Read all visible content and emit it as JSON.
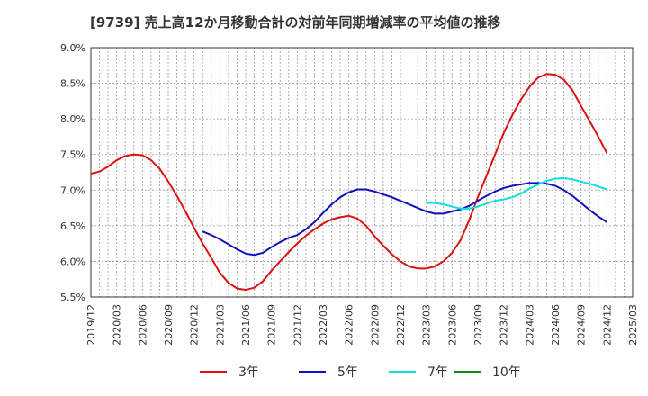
{
  "chart_data": {
    "type": "line",
    "title": "[9739]  売上高12か月移動合計の対前年同期増減率の平均値の推移",
    "x_tick_labels": [
      "2019/12",
      "2020/03",
      "2020/06",
      "2020/09",
      "2020/12",
      "2021/03",
      "2021/06",
      "2021/09",
      "2021/12",
      "2022/03",
      "2022/06",
      "2022/09",
      "2022/12",
      "2023/03",
      "2023/06",
      "2023/09",
      "2023/12",
      "2024/03",
      "2024/06",
      "2024/09",
      "2024/12",
      "2025/03"
    ],
    "y_tick_labels": [
      "5.5%",
      "6.0%",
      "6.5%",
      "7.0%",
      "7.5%",
      "8.0%",
      "8.5%",
      "9.0%"
    ],
    "ylim": [
      5.5,
      9.0
    ],
    "grid": true,
    "legend_position": "bottom",
    "series": [
      {
        "name": "3年",
        "color": "#dd1111",
        "x": [
          "2019/12",
          "2020/01",
          "2020/02",
          "2020/03",
          "2020/04",
          "2020/05",
          "2020/06",
          "2020/07",
          "2020/08",
          "2020/09",
          "2020/10",
          "2020/11",
          "2020/12",
          "2021/01",
          "2021/02",
          "2021/03",
          "2021/04",
          "2021/05",
          "2021/06",
          "2021/07",
          "2021/08",
          "2021/09",
          "2021/10",
          "2021/11",
          "2021/12",
          "2022/01",
          "2022/02",
          "2022/03",
          "2022/04",
          "2022/05",
          "2022/06",
          "2022/07",
          "2022/08",
          "2022/09",
          "2022/10",
          "2022/11",
          "2022/12",
          "2023/01",
          "2023/02",
          "2023/03",
          "2023/04",
          "2023/05",
          "2023/06",
          "2023/07",
          "2023/08",
          "2023/09",
          "2023/10",
          "2023/11",
          "2023/12",
          "2024/01",
          "2024/02",
          "2024/03",
          "2024/04",
          "2024/05",
          "2024/06",
          "2024/07",
          "2024/08",
          "2024/09",
          "2024/10",
          "2024/11",
          "2024/12"
        ],
        "values": [
          7.23,
          7.26,
          7.33,
          7.42,
          7.48,
          7.5,
          7.49,
          7.42,
          7.3,
          7.12,
          6.92,
          6.7,
          6.47,
          6.25,
          6.05,
          5.84,
          5.7,
          5.62,
          5.6,
          5.63,
          5.72,
          5.87,
          6.0,
          6.13,
          6.25,
          6.36,
          6.45,
          6.53,
          6.59,
          6.62,
          6.64,
          6.6,
          6.5,
          6.35,
          6.22,
          6.1,
          6.0,
          5.93,
          5.9,
          5.9,
          5.93,
          6.0,
          6.12,
          6.3,
          6.58,
          6.9,
          7.2,
          7.5,
          7.8,
          8.05,
          8.27,
          8.45,
          8.58,
          8.63,
          8.62,
          8.55,
          8.4,
          8.18,
          7.97,
          7.75,
          7.52
        ]
      },
      {
        "name": "5年",
        "color": "#1111bb",
        "x": [
          "2021/01",
          "2021/02",
          "2021/03",
          "2021/04",
          "2021/05",
          "2021/06",
          "2021/07",
          "2021/08",
          "2021/09",
          "2021/10",
          "2021/11",
          "2021/12",
          "2022/01",
          "2022/02",
          "2022/03",
          "2022/04",
          "2022/05",
          "2022/06",
          "2022/07",
          "2022/08",
          "2022/09",
          "2022/10",
          "2022/11",
          "2022/12",
          "2023/01",
          "2023/02",
          "2023/03",
          "2023/04",
          "2023/05",
          "2023/06",
          "2023/07",
          "2023/08",
          "2023/09",
          "2023/10",
          "2023/11",
          "2023/12",
          "2024/01",
          "2024/02",
          "2024/03",
          "2024/04",
          "2024/05",
          "2024/06",
          "2024/07",
          "2024/08",
          "2024/09",
          "2024/10",
          "2024/11",
          "2024/12"
        ],
        "values": [
          6.42,
          6.37,
          6.31,
          6.24,
          6.17,
          6.11,
          6.09,
          6.12,
          6.2,
          6.27,
          6.33,
          6.37,
          6.45,
          6.55,
          6.68,
          6.8,
          6.9,
          6.97,
          7.01,
          7.01,
          6.98,
          6.94,
          6.9,
          6.85,
          6.8,
          6.75,
          6.7,
          6.67,
          6.67,
          6.7,
          6.73,
          6.78,
          6.85,
          6.92,
          6.98,
          7.03,
          7.06,
          7.08,
          7.1,
          7.1,
          7.09,
          7.06,
          7.0,
          6.92,
          6.82,
          6.72,
          6.63,
          6.55
        ]
      },
      {
        "name": "7年",
        "color": "#11dddd",
        "x": [
          "2023/03",
          "2023/04",
          "2023/05",
          "2023/06",
          "2023/07",
          "2023/08",
          "2023/09",
          "2023/10",
          "2023/11",
          "2023/12",
          "2024/01",
          "2024/02",
          "2024/03",
          "2024/04",
          "2024/05",
          "2024/06",
          "2024/07",
          "2024/08",
          "2024/09",
          "2024/10",
          "2024/11",
          "2024/12"
        ],
        "values": [
          6.82,
          6.82,
          6.8,
          6.77,
          6.74,
          6.74,
          6.77,
          6.81,
          6.85,
          6.87,
          6.9,
          6.95,
          7.02,
          7.08,
          7.13,
          7.16,
          7.17,
          7.15,
          7.12,
          7.09,
          7.05,
          7.01
        ]
      },
      {
        "name": "10年",
        "color": "#118811",
        "x": [],
        "values": []
      }
    ]
  }
}
